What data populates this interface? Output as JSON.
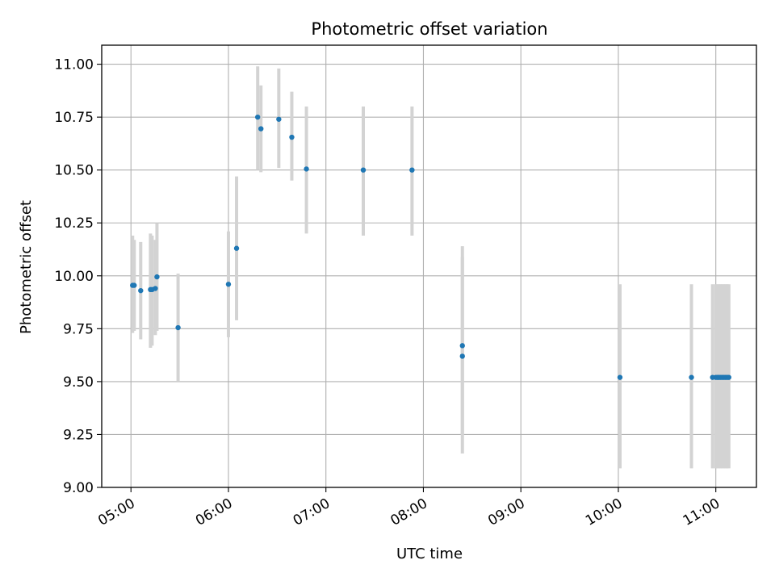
{
  "chart_data": {
    "type": "scatter",
    "title": "Photometric offset variation",
    "xlabel": "UTC time",
    "ylabel": "Photometric offset",
    "xlim": [
      "04:42",
      "11:25"
    ],
    "ylim": [
      9.0,
      11.09
    ],
    "x_ticks": [
      "05:00",
      "06:00",
      "07:00",
      "08:00",
      "09:00",
      "10:00",
      "11:00"
    ],
    "y_ticks": [
      "9.00",
      "9.25",
      "9.50",
      "9.75",
      "10.00",
      "10.25",
      "10.50",
      "10.75",
      "11.00"
    ],
    "grid": true,
    "x_tick_rotation_deg": 30,
    "colors": {
      "points": "#1f77b4",
      "error_bars": "#d3d3d3",
      "grid": "#b0b0b0",
      "axes": "#000000"
    },
    "points": [
      {
        "x": "05:01",
        "y": 9.955,
        "y_low": 9.73,
        "y_high": 10.19
      },
      {
        "x": "05:02",
        "y": 9.955,
        "y_low": 9.74,
        "y_high": 10.17
      },
      {
        "x": "05:06",
        "y": 9.93,
        "y_low": 9.7,
        "y_high": 10.16
      },
      {
        "x": "05:12",
        "y": 9.935,
        "y_low": 9.66,
        "y_high": 10.2
      },
      {
        "x": "05:13",
        "y": 9.935,
        "y_low": 9.67,
        "y_high": 10.19
      },
      {
        "x": "05:15",
        "y": 9.94,
        "y_low": 9.72,
        "y_high": 10.17
      },
      {
        "x": "05:16",
        "y": 9.995,
        "y_low": 9.74,
        "y_high": 10.25
      },
      {
        "x": "05:29",
        "y": 9.755,
        "y_low": 9.5,
        "y_high": 10.01
      },
      {
        "x": "06:00",
        "y": 9.96,
        "y_low": 9.71,
        "y_high": 10.21
      },
      {
        "x": "06:05",
        "y": 10.13,
        "y_low": 9.79,
        "y_high": 10.47
      },
      {
        "x": "06:18",
        "y": 10.75,
        "y_low": 10.5,
        "y_high": 10.99
      },
      {
        "x": "06:20",
        "y": 10.695,
        "y_low": 10.49,
        "y_high": 10.9
      },
      {
        "x": "06:31",
        "y": 10.74,
        "y_low": 10.51,
        "y_high": 10.98
      },
      {
        "x": "06:39",
        "y": 10.655,
        "y_low": 10.45,
        "y_high": 10.87
      },
      {
        "x": "06:48",
        "y": 10.505,
        "y_low": 10.2,
        "y_high": 10.8
      },
      {
        "x": "07:23",
        "y": 10.5,
        "y_low": 10.19,
        "y_high": 10.8
      },
      {
        "x": "07:53",
        "y": 10.5,
        "y_low": 10.19,
        "y_high": 10.8
      },
      {
        "x": "08:24",
        "y": 9.67,
        "y_low": 9.25,
        "y_high": 10.14
      },
      {
        "x": "08:24",
        "y": 9.62,
        "y_low": 9.16,
        "y_high": 10.09
      },
      {
        "x": "10:01",
        "y": 9.52,
        "y_low": 9.09,
        "y_high": 9.96
      },
      {
        "x": "10:45",
        "y": 9.52,
        "y_low": 9.09,
        "y_high": 9.96
      },
      {
        "x": "10:58",
        "y": 9.52,
        "y_low": 9.09,
        "y_high": 9.96
      },
      {
        "x": "11:00",
        "y": 9.52,
        "y_low": 9.09,
        "y_high": 9.96
      },
      {
        "x": "11:01",
        "y": 9.52,
        "y_low": 9.09,
        "y_high": 9.96
      },
      {
        "x": "11:02",
        "y": 9.52,
        "y_low": 9.09,
        "y_high": 9.96
      },
      {
        "x": "11:03",
        "y": 9.52,
        "y_low": 9.09,
        "y_high": 9.96
      },
      {
        "x": "11:04",
        "y": 9.52,
        "y_low": 9.09,
        "y_high": 9.96
      },
      {
        "x": "11:05",
        "y": 9.52,
        "y_low": 9.09,
        "y_high": 9.96
      },
      {
        "x": "11:06",
        "y": 9.52,
        "y_low": 9.09,
        "y_high": 9.96
      },
      {
        "x": "11:07",
        "y": 9.52,
        "y_low": 9.09,
        "y_high": 9.96
      },
      {
        "x": "11:08",
        "y": 9.52,
        "y_low": 9.09,
        "y_high": 9.96
      }
    ]
  }
}
